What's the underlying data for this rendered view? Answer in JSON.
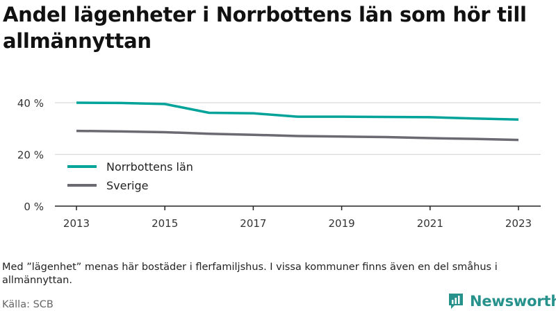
{
  "title": "Andel lägenheter i Norrbottens län som hör till allmännyttan",
  "note": "Med ”lägenhet” menas här bostäder i flerfamiljshus. I vissa kommuner finns även en del småhus i allmännyttan.",
  "source": "Källa: SCB",
  "brand": {
    "name": "Newsworthy",
    "color": "#27918b"
  },
  "chart_data": {
    "type": "line",
    "x": [
      2013,
      2014,
      2015,
      2016,
      2017,
      2018,
      2019,
      2020,
      2021,
      2022,
      2023
    ],
    "series": [
      {
        "name": "Norrbottens län",
        "color": "#00a39a",
        "values": [
          40.0,
          39.9,
          39.5,
          36.1,
          35.9,
          34.6,
          34.6,
          34.5,
          34.4,
          33.9,
          33.5
        ]
      },
      {
        "name": "Sverige",
        "color": "#6b6a72",
        "values": [
          29.1,
          28.9,
          28.6,
          28.0,
          27.6,
          27.1,
          26.9,
          26.7,
          26.3,
          26.0,
          25.6
        ]
      }
    ],
    "ylim": [
      0,
      45
    ],
    "yticks": [
      0,
      20,
      40
    ],
    "ytick_labels": [
      "0 %",
      "20 %",
      "40 %"
    ],
    "xticks": [
      2013,
      2015,
      2017,
      2019,
      2021,
      2023
    ],
    "xtick_labels": [
      "2013",
      "2015",
      "2017",
      "2019",
      "2021",
      "2023"
    ],
    "grid": true,
    "legend": "left"
  }
}
